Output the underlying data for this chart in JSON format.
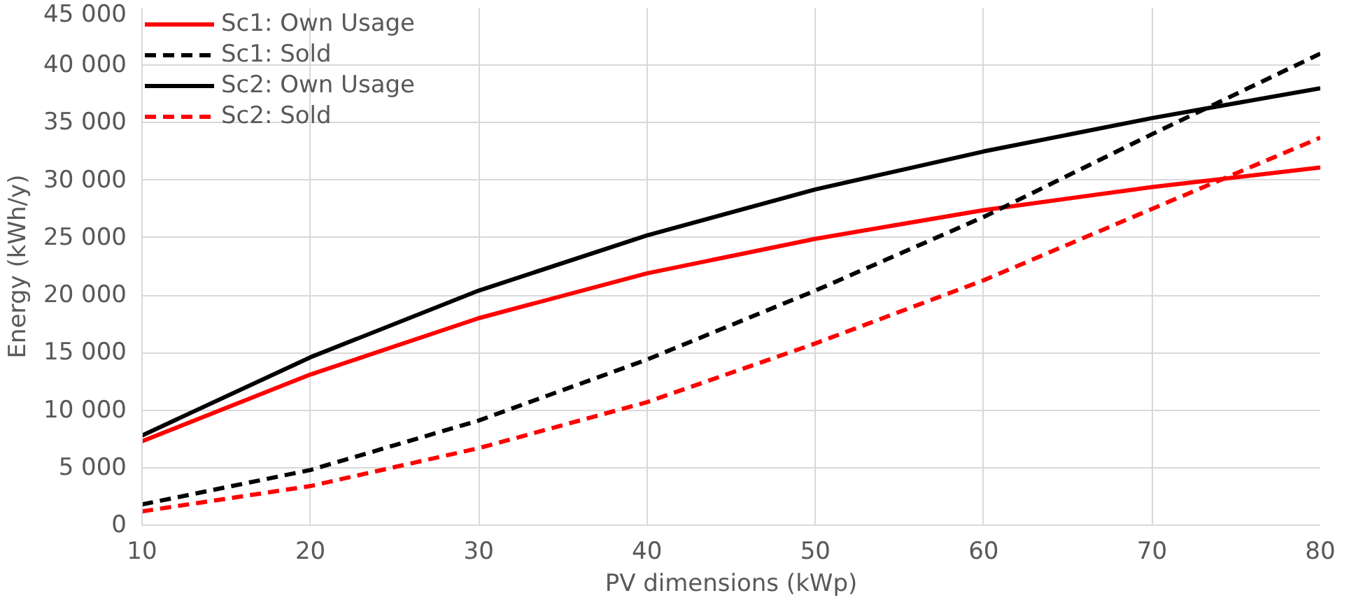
{
  "chart_data": {
    "type": "line",
    "xlabel": "PV dimensions (kWp)",
    "ylabel": "Energy (kWh/y)",
    "x": [
      10,
      20,
      30,
      40,
      50,
      60,
      70,
      80
    ],
    "series": [
      {
        "name": "Sc1: Own Usage",
        "color": "#ff0000",
        "line_style": "solid",
        "values": [
          7300,
          13100,
          18000,
          21900,
          24900,
          27400,
          29400,
          31100
        ]
      },
      {
        "name": "Sc1: Sold",
        "color": "#000000",
        "line_style": "dashed",
        "values": [
          1800,
          4800,
          9100,
          14400,
          20400,
          26800,
          34000,
          41000
        ]
      },
      {
        "name": "Sc2: Own Usage",
        "color": "#000000",
        "line_style": "solid",
        "values": [
          7800,
          14600,
          20400,
          25200,
          29200,
          32500,
          35400,
          38000
        ]
      },
      {
        "name": "Sc2: Sold",
        "color": "#ff0000",
        "line_style": "dashed",
        "values": [
          1200,
          3400,
          6700,
          10700,
          15800,
          21300,
          27500,
          33700
        ]
      }
    ],
    "xlim": [
      10,
      80
    ],
    "xticks": [
      10,
      20,
      30,
      40,
      50,
      60,
      70,
      80
    ],
    "ylim": [
      0,
      45000
    ],
    "yticks": [
      0,
      {
        "value": 5000,
        "label": "5 000"
      },
      {
        "value": 10000,
        "label": "10 000"
      },
      {
        "value": 15000,
        "label": "15 000"
      },
      {
        "value": 20000,
        "label": "20 000"
      },
      {
        "value": 25000,
        "label": "25 000"
      },
      {
        "value": 30000,
        "label": "30 000"
      },
      {
        "value": 35000,
        "label": "35 000"
      },
      {
        "value": 40000,
        "label": "40 000"
      },
      {
        "value": 45000,
        "label": "45 000"
      }
    ],
    "grid": true,
    "legend": "top left",
    "marker": "none"
  }
}
